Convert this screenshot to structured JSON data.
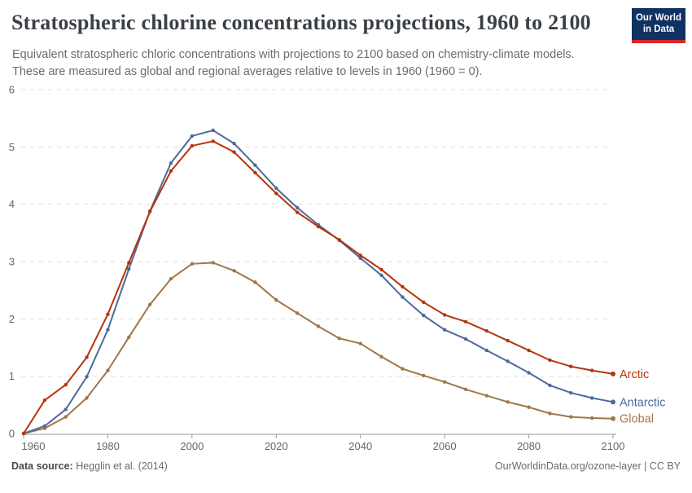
{
  "header": {
    "title": "Stratospheric chlorine concentrations projections, 1960 to 2100",
    "subtitle_line1": "Equivalent stratospheric chloric concentrations with projections to 2100 based on chemistry-climate models.",
    "subtitle_line2": "These are measured as global and regional averages relative to levels in 1960 (1960 = 0).",
    "logo": {
      "line1": "Our World",
      "line2": "in Data"
    }
  },
  "footer": {
    "source_label": "Data source:",
    "source_value": "Hegglin et al. (2014)",
    "credit": "OurWorldinData.org/ozone-layer | CC BY"
  },
  "chart_data": {
    "type": "line",
    "title": "Stratospheric chlorine concentrations projections, 1960 to 2100",
    "xlabel": "",
    "ylabel": "",
    "xlim": [
      1960,
      2100
    ],
    "ylim": [
      0,
      6
    ],
    "xticks": [
      1960,
      1980,
      2000,
      2020,
      2040,
      2060,
      2080,
      2100
    ],
    "yticks": [
      0,
      1,
      2,
      3,
      4,
      5,
      6
    ],
    "grid": "horizontal-dashed",
    "legend_position": "line-end-labels",
    "x": [
      1960,
      1965,
      1970,
      1975,
      1980,
      1985,
      1990,
      1995,
      2000,
      2005,
      2010,
      2015,
      2020,
      2025,
      2030,
      2035,
      2040,
      2045,
      2050,
      2055,
      2060,
      2065,
      2070,
      2075,
      2080,
      2085,
      2090,
      2095,
      2100
    ],
    "series": [
      {
        "name": "Global",
        "color": "#a1764a",
        "values": [
          0,
          0.09,
          0.29,
          0.62,
          1.1,
          1.68,
          2.25,
          2.7,
          2.96,
          2.98,
          2.84,
          2.64,
          2.33,
          2.1,
          1.87,
          1.66,
          1.57,
          1.34,
          1.13,
          1.01,
          0.9,
          0.77,
          0.66,
          0.55,
          0.46,
          0.35,
          0.29,
          0.27,
          0.26
        ]
      },
      {
        "name": "Antarctic",
        "color": "#4c6a9c",
        "values": [
          0,
          0.13,
          0.42,
          0.99,
          1.81,
          2.87,
          3.88,
          4.72,
          5.19,
          5.29,
          5.06,
          4.68,
          4.28,
          3.94,
          3.64,
          3.37,
          3.06,
          2.76,
          2.38,
          2.06,
          1.81,
          1.65,
          1.45,
          1.26,
          1.06,
          0.84,
          0.71,
          0.62,
          0.55
        ]
      },
      {
        "name": "Arctic",
        "color": "#b5350c",
        "values": [
          0,
          0.58,
          0.85,
          1.33,
          2.08,
          2.98,
          3.87,
          4.58,
          5.02,
          5.1,
          4.91,
          4.55,
          4.19,
          3.86,
          3.61,
          3.38,
          3.11,
          2.86,
          2.56,
          2.29,
          2.07,
          1.95,
          1.79,
          1.62,
          1.45,
          1.28,
          1.17,
          1.1,
          1.04
        ]
      }
    ],
    "axis_color": "#999999",
    "gridline_color": "#dedede",
    "tick_label_color": "#666666"
  }
}
